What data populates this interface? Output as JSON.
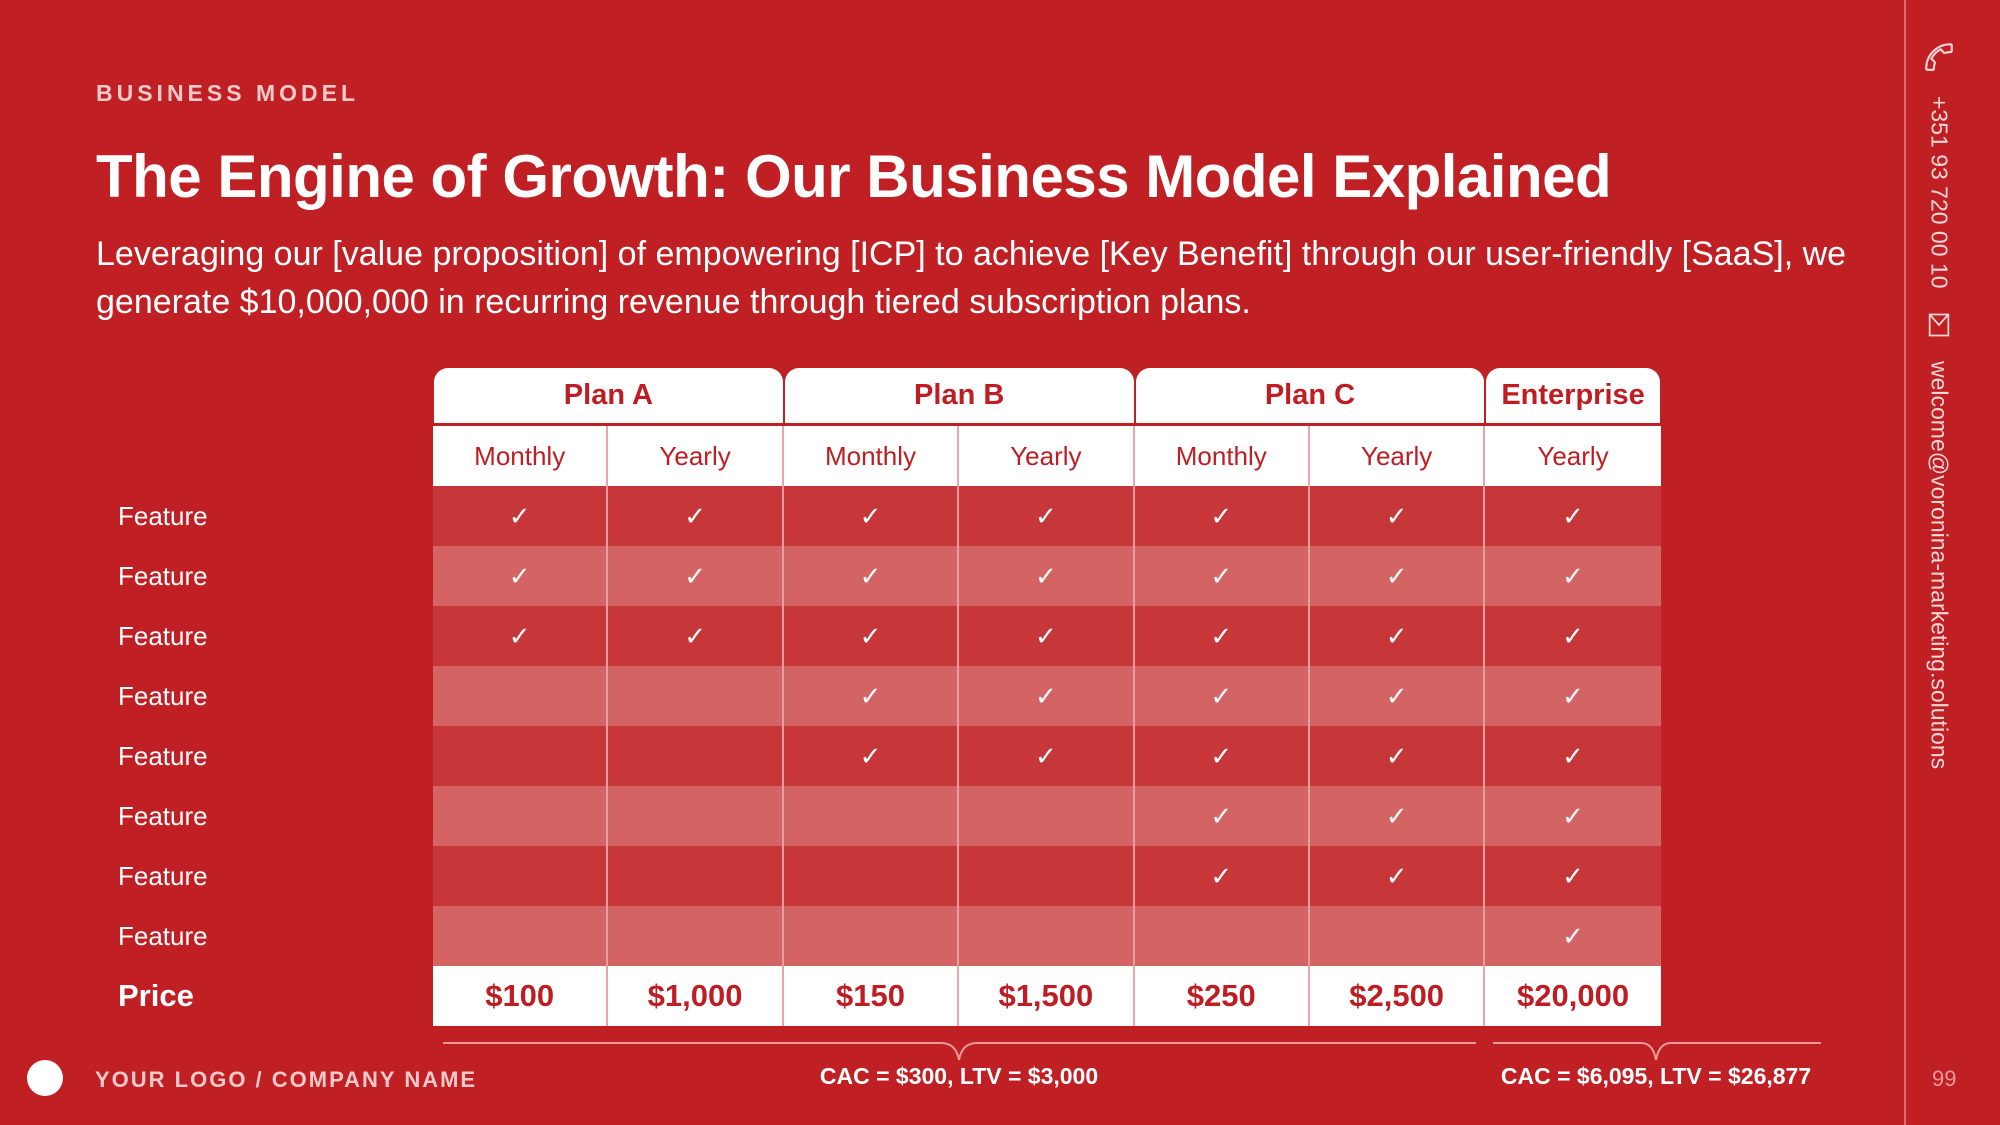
{
  "slide": {
    "section_label": "BUSINESS MODEL",
    "title": "The Engine of Growth: Our Business Model Explained",
    "subtitle": "Leveraging our [value proposition] of empowering [ICP] to achieve [Key Benefit] through our user-friendly [SaaS], we generate $10,000,000 in recurring revenue through tiered subscription plans.",
    "page_number": "99"
  },
  "contact": {
    "phone": "+351 93 720 00 10",
    "email": "welcome@voronina-marketing.solutions"
  },
  "table": {
    "plans": [
      "Plan A",
      "Plan B",
      "Plan C",
      "Enterprise"
    ],
    "billing": [
      "Monthly",
      "Yearly",
      "Monthly",
      "Yearly",
      "Monthly",
      "Yearly",
      "Yearly"
    ],
    "features": [
      "Feature",
      "Feature",
      "Feature",
      "Feature",
      "Feature",
      "Feature",
      "Feature",
      "Feature"
    ],
    "check_glyph": "✓",
    "availability": [
      [
        true,
        true,
        true,
        true,
        true,
        true,
        true
      ],
      [
        true,
        true,
        true,
        true,
        true,
        true,
        true
      ],
      [
        true,
        true,
        true,
        true,
        true,
        true,
        true
      ],
      [
        false,
        false,
        true,
        true,
        true,
        true,
        true
      ],
      [
        false,
        false,
        true,
        true,
        true,
        true,
        true
      ],
      [
        false,
        false,
        false,
        false,
        true,
        true,
        true
      ],
      [
        false,
        false,
        false,
        false,
        true,
        true,
        true
      ],
      [
        false,
        false,
        false,
        false,
        false,
        false,
        true
      ]
    ],
    "price_label": "Price",
    "prices": [
      "$100",
      "$1,000",
      "$150",
      "$1,500",
      "$250",
      "$2,500",
      "$20,000"
    ]
  },
  "metrics": {
    "standard": "CAC = $300, LTV = $3,000",
    "enterprise": "CAC = $6,095, LTV = $26,877"
  },
  "footer": {
    "logo_text": "YOUR LOGO / COMPANY NAME"
  },
  "colors": {
    "background": "#C02023",
    "row_dark": "#C73638",
    "row_light": "#D46464",
    "header_text": "#BE1E23"
  }
}
